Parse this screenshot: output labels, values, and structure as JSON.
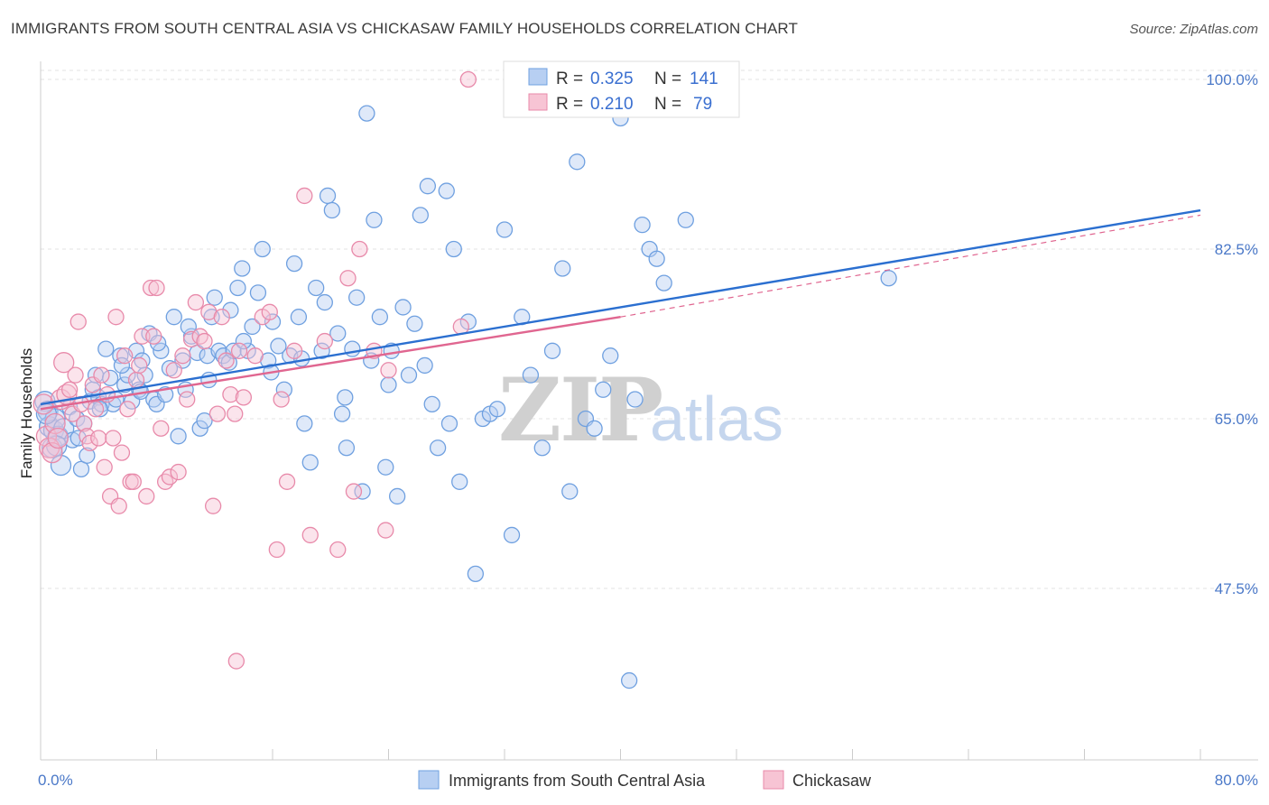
{
  "title": "IMMIGRANTS FROM SOUTH CENTRAL ASIA VS CHICKASAW FAMILY HOUSEHOLDS CORRELATION CHART",
  "source": "Source: ZipAtlas.com",
  "watermark": {
    "zip": "ZIP",
    "atlas": "atlas"
  },
  "colors": {
    "blue": "#6fa0e0",
    "blue_fill": "#b7cff2",
    "blue_line": "#2b6fd0",
    "pink": "#e88aaa",
    "pink_fill": "#f7c4d4",
    "pink_line": "#e06690",
    "axis_text": "#4a78c8"
  },
  "legend": {
    "r_label": "R =",
    "n_label": "N =",
    "rows": [
      {
        "r": "0.325",
        "n": "141"
      },
      {
        "r": "0.210",
        "n": "79"
      }
    ]
  },
  "chart_data": {
    "type": "scatter",
    "xlabel": "",
    "ylabel": "Family Households",
    "xlim": [
      0,
      80
    ],
    "ylim": [
      33,
      102
    ],
    "x_tick_labels": [
      "0.0%",
      "80.0%"
    ],
    "y_ticks": [
      47.5,
      65.0,
      82.5,
      100.0
    ],
    "y_tick_labels": [
      "47.5%",
      "65.0%",
      "82.5%",
      "100.0%"
    ],
    "grid": true,
    "legend_position": "top-center",
    "series": [
      {
        "name": "Immigrants from South Central Asia",
        "trend": {
          "x0": 0,
          "y0": 66.5,
          "x1": 80,
          "y1": 86.5,
          "dashed_after": null
        },
        "points": [
          [
            0.3,
            66.8
          ],
          [
            0.5,
            65.8
          ],
          [
            0.6,
            64.2
          ],
          [
            0.8,
            62.0
          ],
          [
            0.9,
            63.8
          ],
          [
            1.0,
            65.0
          ],
          [
            1.2,
            63.2
          ],
          [
            1.4,
            60.2
          ],
          [
            1.6,
            64.0
          ],
          [
            2.0,
            66.2
          ],
          [
            2.2,
            62.8
          ],
          [
            2.5,
            65.0
          ],
          [
            2.8,
            59.8
          ],
          [
            3.0,
            64.5
          ],
          [
            3.2,
            61.2
          ],
          [
            3.4,
            66.8
          ],
          [
            3.6,
            68.0
          ],
          [
            3.8,
            69.5
          ],
          [
            4.0,
            67.2
          ],
          [
            4.2,
            66.5
          ],
          [
            4.5,
            72.2
          ],
          [
            4.8,
            69.2
          ],
          [
            5.0,
            66.5
          ],
          [
            5.2,
            67.0
          ],
          [
            5.5,
            71.5
          ],
          [
            5.8,
            68.5
          ],
          [
            6.0,
            69.5
          ],
          [
            6.3,
            66.8
          ],
          [
            6.6,
            72.0
          ],
          [
            6.8,
            68.0
          ],
          [
            7.0,
            71.0
          ],
          [
            7.2,
            69.5
          ],
          [
            7.5,
            73.8
          ],
          [
            7.8,
            67.0
          ],
          [
            8.0,
            66.5
          ],
          [
            8.3,
            72.0
          ],
          [
            8.6,
            67.5
          ],
          [
            8.9,
            70.2
          ],
          [
            9.2,
            75.5
          ],
          [
            9.5,
            63.2
          ],
          [
            9.8,
            71.0
          ],
          [
            10.0,
            68.0
          ],
          [
            10.4,
            73.5
          ],
          [
            10.8,
            71.8
          ],
          [
            11.0,
            64.0
          ],
          [
            11.3,
            64.8
          ],
          [
            11.5,
            71.5
          ],
          [
            11.8,
            75.5
          ],
          [
            12.0,
            77.5
          ],
          [
            12.3,
            72.0
          ],
          [
            12.6,
            71.5
          ],
          [
            13.0,
            70.8
          ],
          [
            13.3,
            72.0
          ],
          [
            13.6,
            78.5
          ],
          [
            13.9,
            80.5
          ],
          [
            14.3,
            72.0
          ],
          [
            14.6,
            74.5
          ],
          [
            15.0,
            78.0
          ],
          [
            15.3,
            82.5
          ],
          [
            15.7,
            71.0
          ],
          [
            16.0,
            75.0
          ],
          [
            16.4,
            72.5
          ],
          [
            16.8,
            68.0
          ],
          [
            17.2,
            71.5
          ],
          [
            17.5,
            81.0
          ],
          [
            17.8,
            75.5
          ],
          [
            18.2,
            64.5
          ],
          [
            18.6,
            60.5
          ],
          [
            19.0,
            78.5
          ],
          [
            19.4,
            72.0
          ],
          [
            19.8,
            88.0
          ],
          [
            20.1,
            86.5
          ],
          [
            20.5,
            73.8
          ],
          [
            20.8,
            65.5
          ],
          [
            21.1,
            62.0
          ],
          [
            21.5,
            72.2
          ],
          [
            21.8,
            77.5
          ],
          [
            22.2,
            57.5
          ],
          [
            22.5,
            96.5
          ],
          [
            23.0,
            85.5
          ],
          [
            23.4,
            75.5
          ],
          [
            23.8,
            60.0
          ],
          [
            24.2,
            72.0
          ],
          [
            24.6,
            57.0
          ],
          [
            25.0,
            76.5
          ],
          [
            25.4,
            69.5
          ],
          [
            25.8,
            74.8
          ],
          [
            26.2,
            86.0
          ],
          [
            26.7,
            89.0
          ],
          [
            27.0,
            66.5
          ],
          [
            27.4,
            62.0
          ],
          [
            28.0,
            88.5
          ],
          [
            28.5,
            82.5
          ],
          [
            28.9,
            58.5
          ],
          [
            29.5,
            75.0
          ],
          [
            30.0,
            49.0
          ],
          [
            30.5,
            65.0
          ],
          [
            31.0,
            65.5
          ],
          [
            31.5,
            66.0
          ],
          [
            32.0,
            84.5
          ],
          [
            32.5,
            53.0
          ],
          [
            33.2,
            75.5
          ],
          [
            33.8,
            69.5
          ],
          [
            34.6,
            62.0
          ],
          [
            35.3,
            72.0
          ],
          [
            36.0,
            80.5
          ],
          [
            36.5,
            57.5
          ],
          [
            37.0,
            91.5
          ],
          [
            37.6,
            65.0
          ],
          [
            38.2,
            64.0
          ],
          [
            38.8,
            68.0
          ],
          [
            39.3,
            71.5
          ],
          [
            40.0,
            96.0
          ],
          [
            40.6,
            38.0
          ],
          [
            41.0,
            67.0
          ],
          [
            41.5,
            85.0
          ],
          [
            42.0,
            82.5
          ],
          [
            42.5,
            81.5
          ],
          [
            43.0,
            79.0
          ],
          [
            43.7,
            97.5
          ],
          [
            44.5,
            85.5
          ],
          [
            58.5,
            79.5
          ],
          [
            0.4,
            65.5
          ],
          [
            1.1,
            62.2
          ],
          [
            2.6,
            63.0
          ],
          [
            4.1,
            66.0
          ],
          [
            5.6,
            70.5
          ],
          [
            6.9,
            67.8
          ],
          [
            8.1,
            72.8
          ],
          [
            10.2,
            74.5
          ],
          [
            11.6,
            69.0
          ],
          [
            13.1,
            76.2
          ],
          [
            14.0,
            73.0
          ],
          [
            15.9,
            69.8
          ],
          [
            18.0,
            71.2
          ],
          [
            19.6,
            77.0
          ],
          [
            21.0,
            67.2
          ],
          [
            22.8,
            71.0
          ],
          [
            24.0,
            68.5
          ],
          [
            26.5,
            70.5
          ],
          [
            28.2,
            64.5
          ]
        ]
      },
      {
        "name": "Chickasaw",
        "trend": {
          "x0": 0,
          "y0": 66.0,
          "x1": 40,
          "y1": 75.5,
          "dashed_to": [
            80,
            86.0
          ]
        },
        "points": [
          [
            0.2,
            66.5
          ],
          [
            0.4,
            63.2
          ],
          [
            0.6,
            62.0
          ],
          [
            0.8,
            61.5
          ],
          [
            1.0,
            64.5
          ],
          [
            1.2,
            63.0
          ],
          [
            1.4,
            67.0
          ],
          [
            1.6,
            70.8
          ],
          [
            1.8,
            67.5
          ],
          [
            2.0,
            68.0
          ],
          [
            2.2,
            65.5
          ],
          [
            2.4,
            69.5
          ],
          [
            2.6,
            75.0
          ],
          [
            2.8,
            66.5
          ],
          [
            3.0,
            64.5
          ],
          [
            3.2,
            63.2
          ],
          [
            3.4,
            62.5
          ],
          [
            3.6,
            68.5
          ],
          [
            3.8,
            66.0
          ],
          [
            4.0,
            63.0
          ],
          [
            4.2,
            69.5
          ],
          [
            4.4,
            60.0
          ],
          [
            4.6,
            67.5
          ],
          [
            4.8,
            57.0
          ],
          [
            5.0,
            63.0
          ],
          [
            5.2,
            75.5
          ],
          [
            5.4,
            56.0
          ],
          [
            5.6,
            61.5
          ],
          [
            5.8,
            71.5
          ],
          [
            6.0,
            66.0
          ],
          [
            6.2,
            58.5
          ],
          [
            6.4,
            58.5
          ],
          [
            6.6,
            69.0
          ],
          [
            6.8,
            70.5
          ],
          [
            7.0,
            73.5
          ],
          [
            7.3,
            57.0
          ],
          [
            7.6,
            78.5
          ],
          [
            7.8,
            73.5
          ],
          [
            8.0,
            78.5
          ],
          [
            8.3,
            64.0
          ],
          [
            8.6,
            58.5
          ],
          [
            8.9,
            59.0
          ],
          [
            9.2,
            70.0
          ],
          [
            9.5,
            59.5
          ],
          [
            9.8,
            71.5
          ],
          [
            10.1,
            67.0
          ],
          [
            10.4,
            73.2
          ],
          [
            10.7,
            77.0
          ],
          [
            11.0,
            73.5
          ],
          [
            11.3,
            73.0
          ],
          [
            11.6,
            76.0
          ],
          [
            11.9,
            56.0
          ],
          [
            12.2,
            65.5
          ],
          [
            12.5,
            75.5
          ],
          [
            12.8,
            71.0
          ],
          [
            13.1,
            67.5
          ],
          [
            13.4,
            65.5
          ],
          [
            13.7,
            72.0
          ],
          [
            14.0,
            67.2
          ],
          [
            14.8,
            71.5
          ],
          [
            15.3,
            75.5
          ],
          [
            15.8,
            76.0
          ],
          [
            16.3,
            51.5
          ],
          [
            16.6,
            67.0
          ],
          [
            17.0,
            58.5
          ],
          [
            17.5,
            72.0
          ],
          [
            18.2,
            88.0
          ],
          [
            18.6,
            53.0
          ],
          [
            19.6,
            73.0
          ],
          [
            20.5,
            51.5
          ],
          [
            21.2,
            79.5
          ],
          [
            21.6,
            57.5
          ],
          [
            22.0,
            82.5
          ],
          [
            23.0,
            72.0
          ],
          [
            24.0,
            70.0
          ],
          [
            13.5,
            40.0
          ],
          [
            23.8,
            53.5
          ],
          [
            29.0,
            74.5
          ],
          [
            29.5,
            100.0
          ]
        ]
      }
    ]
  },
  "bottom_legend": [
    "Immigrants from South Central Asia",
    "Chickasaw"
  ]
}
